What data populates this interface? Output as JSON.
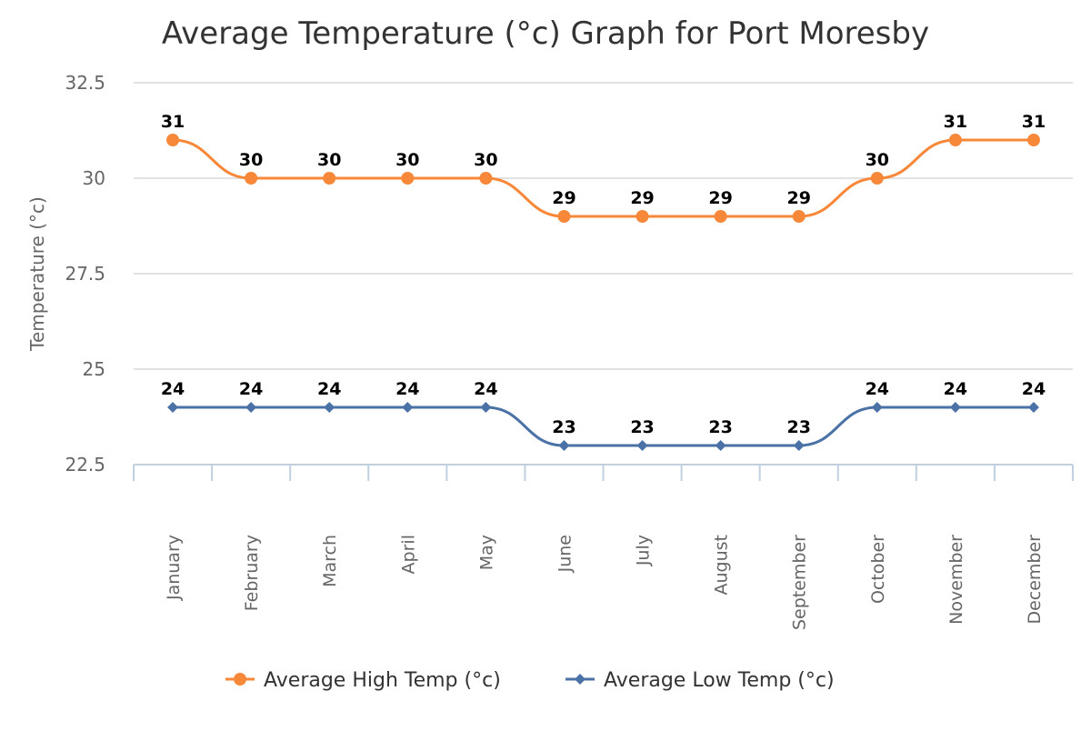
{
  "chart_data": {
    "type": "line",
    "title": "Average Temperature (°c) Graph for Port Moresby",
    "xlabel": "",
    "ylabel": "Temperature (°c)",
    "ylim": [
      22.5,
      32.5
    ],
    "yticks": [
      "22.5",
      "25",
      "27.5",
      "30",
      "32.5"
    ],
    "ytick_values": [
      22.5,
      25,
      27.5,
      30,
      32.5
    ],
    "categories": [
      "January",
      "February",
      "March",
      "April",
      "May",
      "June",
      "July",
      "August",
      "September",
      "October",
      "November",
      "December"
    ],
    "series": [
      {
        "name": "Average High Temp (°c)",
        "color": "#f7883a",
        "marker": "circle",
        "values": [
          31,
          30,
          30,
          30,
          30,
          29,
          29,
          29,
          29,
          30,
          31,
          31
        ]
      },
      {
        "name": "Average Low Temp (°c)",
        "color": "#4a72a6",
        "marker": "diamond",
        "values": [
          24,
          24,
          24,
          24,
          24,
          23,
          23,
          23,
          23,
          24,
          24,
          24
        ]
      }
    ],
    "grid": true,
    "legend": "bottom-center",
    "data_labels": true
  }
}
